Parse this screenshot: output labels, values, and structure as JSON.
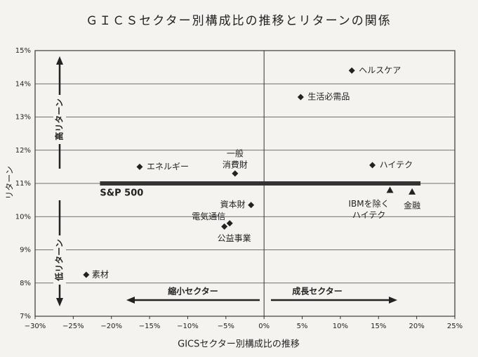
{
  "chart_data": {
    "type": "scatter",
    "title": "ＧＩＣＳセクター別構成比の推移とリターンの関係",
    "x_label": "GICSセクター別構成比の推移",
    "y_label": "リターン",
    "xlim": [
      -30,
      25
    ],
    "xticks": [
      {
        "value": -30,
        "label": "−30%"
      },
      {
        "value": -25,
        "label": "−25%"
      },
      {
        "value": -20,
        "label": "−20%"
      },
      {
        "value": -15,
        "label": "−15%"
      },
      {
        "value": -10,
        "label": "−10%"
      },
      {
        "value": -5,
        "label": "−5%"
      },
      {
        "value": 0,
        "label": "0%"
      },
      {
        "value": 5,
        "label": "5%"
      },
      {
        "value": 10,
        "label": "10%"
      },
      {
        "value": 15,
        "label": "15%"
      },
      {
        "value": 20,
        "label": "20%"
      },
      {
        "value": 25,
        "label": "25%"
      }
    ],
    "ylim": [
      7,
      15
    ],
    "yticks": [
      {
        "value": 7,
        "label": "7%"
      },
      {
        "value": 8,
        "label": "8%"
      },
      {
        "value": 9,
        "label": "9%"
      },
      {
        "value": 10,
        "label": "10%"
      },
      {
        "value": 11,
        "label": "11%"
      },
      {
        "value": 12,
        "label": "12%"
      },
      {
        "value": 13,
        "label": "13%"
      },
      {
        "value": 14,
        "label": "14%"
      },
      {
        "value": 15,
        "label": "15%"
      }
    ],
    "grid": "y",
    "color": "#222222",
    "points": [
      {
        "label": [
          "ヘルスケア"
        ],
        "x": 11.5,
        "y": 14.4,
        "marker": "diamond"
      },
      {
        "label": [
          "生活必需品"
        ],
        "x": 4.8,
        "y": 13.6,
        "marker": "diamond"
      },
      {
        "label": [
          "一般",
          "消費財"
        ],
        "x": -3.8,
        "y": 11.3,
        "marker": "diamond"
      },
      {
        "label": [
          "エネルギー"
        ],
        "x": -16.3,
        "y": 11.5,
        "marker": "diamond"
      },
      {
        "label": [
          "ハイテク"
        ],
        "x": 14.2,
        "y": 11.55,
        "marker": "diamond"
      },
      {
        "label": [
          "IBMを除く",
          "ハイテク"
        ],
        "x": 16.5,
        "y": 10.8,
        "marker": "triangle"
      },
      {
        "label": [
          "金融"
        ],
        "x": 19.4,
        "y": 10.75,
        "marker": "triangle"
      },
      {
        "label": [
          "資本財"
        ],
        "x": -1.7,
        "y": 10.35,
        "marker": "diamond"
      },
      {
        "label": [
          "電気通信"
        ],
        "x": -4.5,
        "y": 9.8,
        "marker": "diamond"
      },
      {
        "label": [
          "公益事業"
        ],
        "x": -5.2,
        "y": 9.7,
        "marker": "diamond"
      },
      {
        "label": [
          "素材"
        ],
        "x": -23.3,
        "y": 8.25,
        "marker": "diamond"
      }
    ],
    "benchmark": {
      "label": "S&P 500",
      "y": 11,
      "x": [
        -21.5,
        20.5
      ]
    },
    "annotations": [
      "高リターン",
      "低リターン",
      "縮小セクター",
      "成長セクター"
    ]
  }
}
